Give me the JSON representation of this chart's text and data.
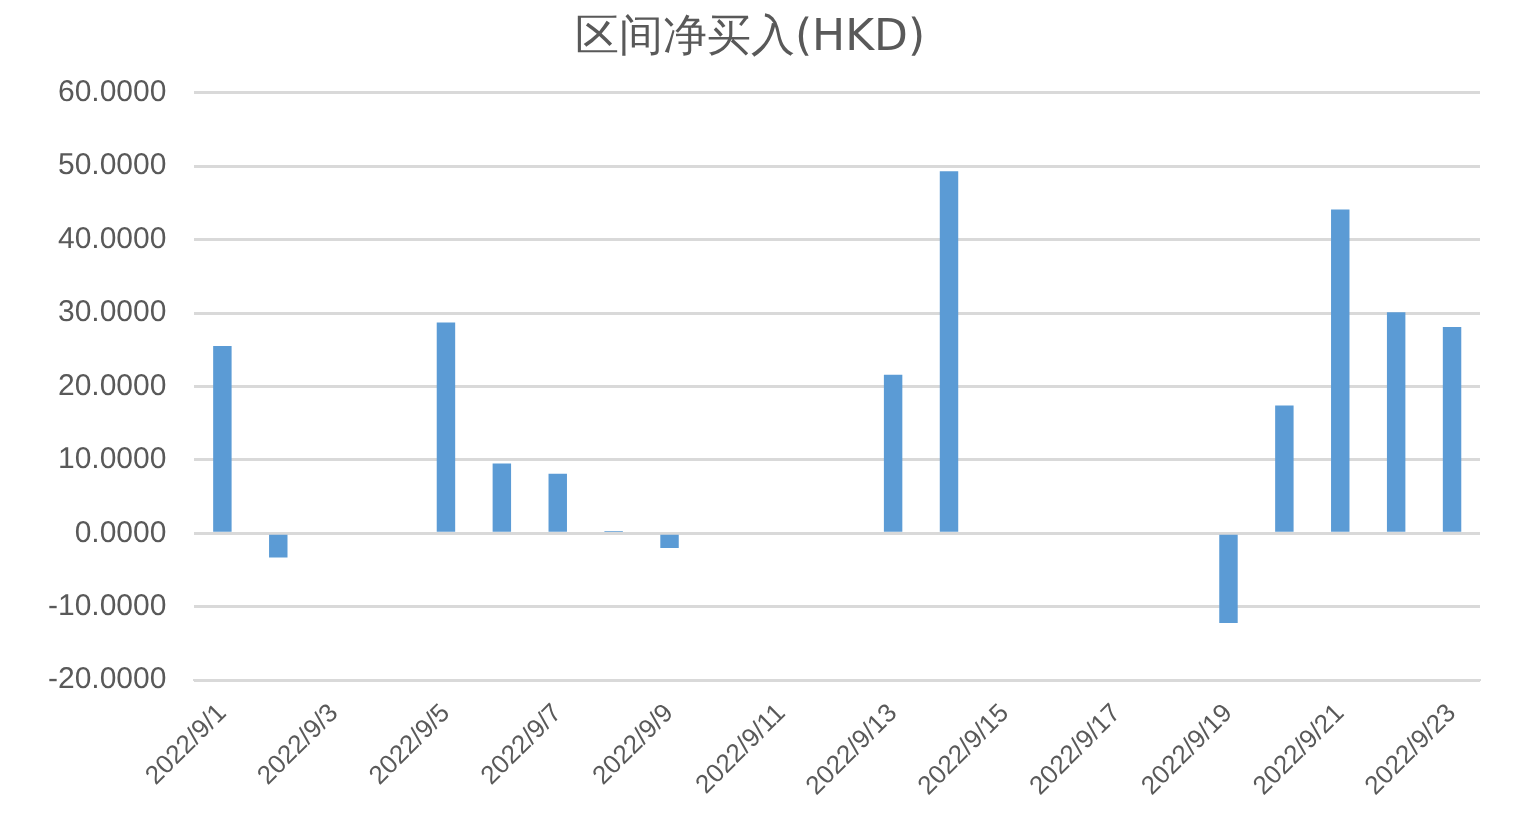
{
  "chart_data": {
    "type": "bar",
    "title": "区间净买入(HKD)",
    "categories": [
      "2022/9/1",
      null,
      "2022/9/3",
      null,
      "2022/9/5",
      null,
      "2022/9/7",
      null,
      "2022/9/9",
      null,
      "2022/9/11",
      null,
      "2022/9/13",
      null,
      "2022/9/15",
      null,
      "2022/9/17",
      null,
      "2022/9/19",
      null,
      "2022/9/21",
      null,
      "2022/9/23"
    ],
    "values": [
      25.5,
      -3.3,
      0,
      0,
      28.7,
      9.5,
      8.1,
      0.3,
      -2.0,
      0,
      0,
      0,
      21.6,
      49.3,
      0,
      0,
      0,
      0,
      -12.2,
      17.4,
      44.1,
      30.1,
      28.1
    ],
    "color": "#5b9bd5",
    "ylim": [
      -20,
      60
    ],
    "yticks": [
      {
        "value": -20,
        "label": "-20.0000"
      },
      {
        "value": -10,
        "label": "-10.0000"
      },
      {
        "value": 0,
        "label": "0.0000"
      },
      {
        "value": 10,
        "label": "10.0000"
      },
      {
        "value": 20,
        "label": "20.0000"
      },
      {
        "value": 30,
        "label": "30.0000"
      },
      {
        "value": 40,
        "label": "40.0000"
      },
      {
        "value": 50,
        "label": "50.0000"
      },
      {
        "value": 60,
        "label": "60.0000"
      }
    ],
    "grid": "y"
  }
}
